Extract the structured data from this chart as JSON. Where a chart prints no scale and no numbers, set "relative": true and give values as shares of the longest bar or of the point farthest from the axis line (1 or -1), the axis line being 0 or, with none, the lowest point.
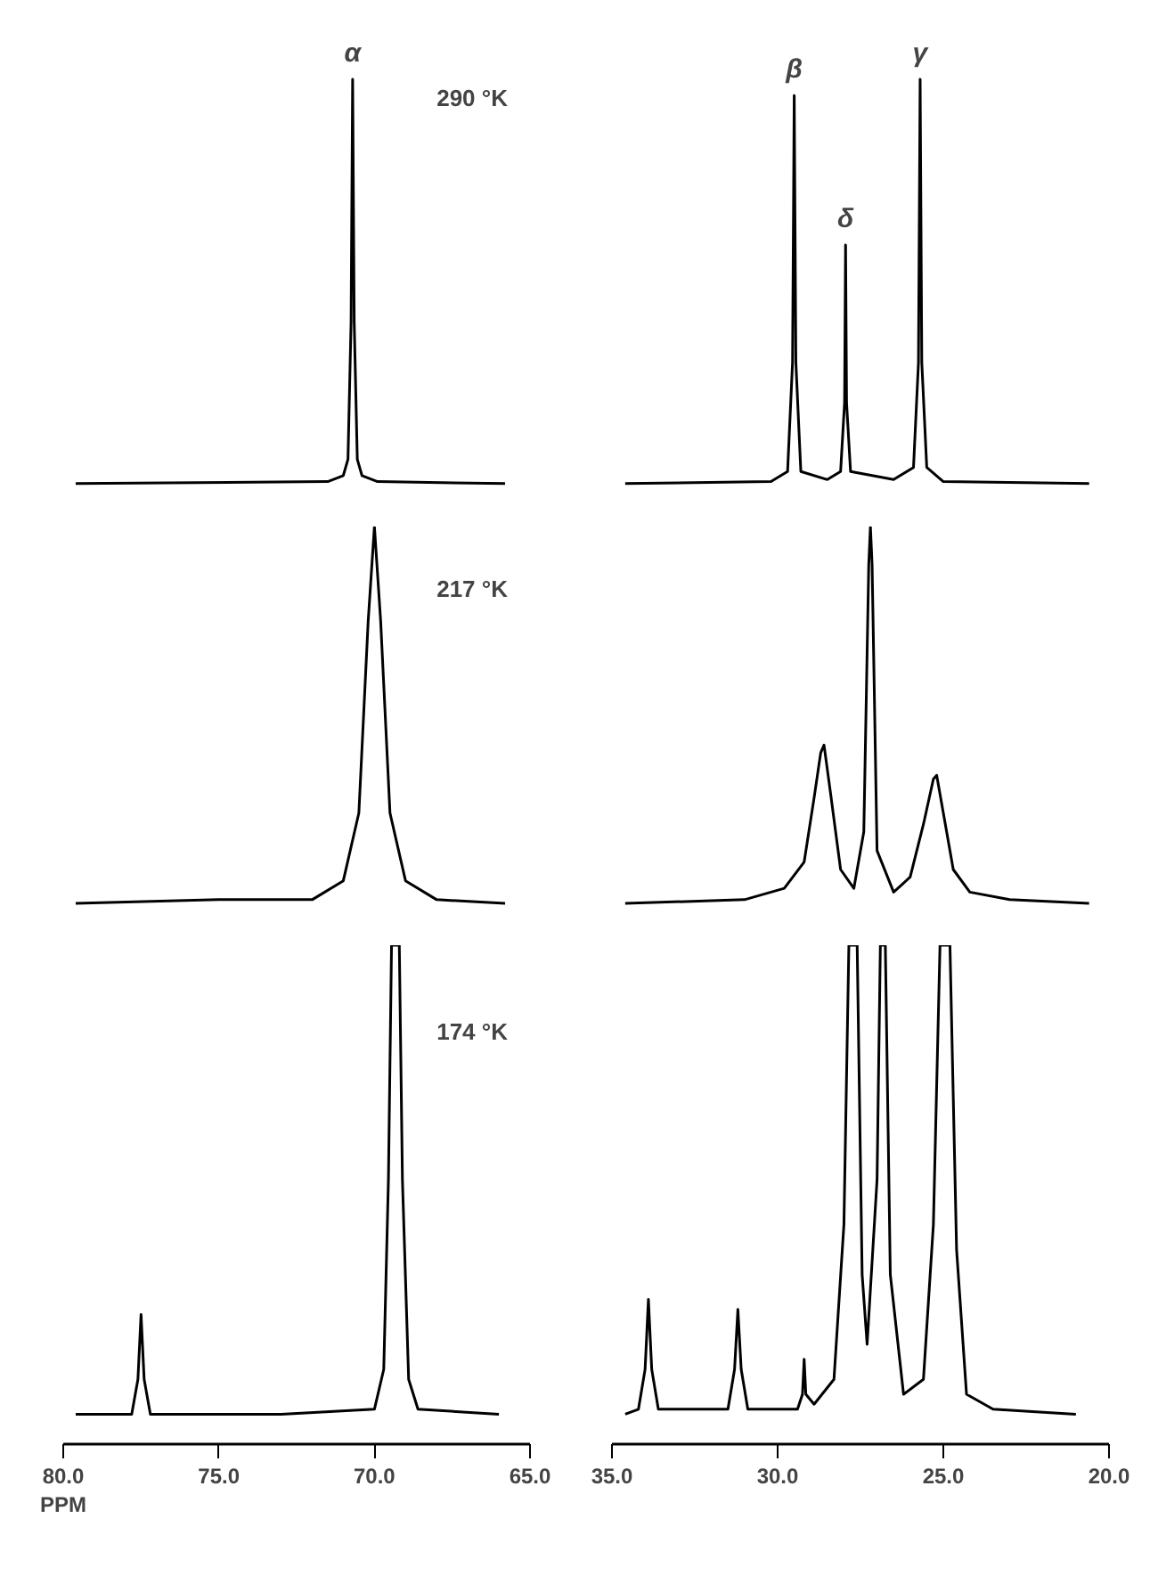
{
  "chart_data": [
    {
      "type": "line",
      "relative": true,
      "xlim": [
        80,
        65
      ],
      "tick_labels": false,
      "grid": false,
      "annotations": [
        {
          "text": "α",
          "x": 70.7,
          "y": 1
        },
        "290 °K"
      ],
      "series": [
        {
          "color": "#000000",
          "x": [
            79.6,
            71.5,
            71.0,
            70.85,
            70.75,
            70.7,
            70.65,
            70.55,
            70.4,
            69.9,
            65.8
          ],
          "values": [
            0,
            0.005,
            0.02,
            0.06,
            0.4,
            1,
            0.4,
            0.06,
            0.02,
            0.005,
            0
          ]
        }
      ]
    },
    {
      "type": "line",
      "relative": true,
      "xlim": [
        35,
        20
      ],
      "tick_labels": false,
      "grid": false,
      "annotations": [
        {
          "text": "β",
          "x": 29.5,
          "y": 0.96
        },
        {
          "text": "δ",
          "x": 27.95,
          "y": 0.59
        },
        {
          "text": "γ",
          "x": 25.7,
          "y": 1
        }
      ],
      "series": [
        {
          "color": "#000000",
          "x": [
            34.6,
            30.2,
            29.7,
            29.55,
            29.5,
            29.45,
            29.3,
            28.5,
            28.1,
            27.98,
            27.95,
            27.92,
            27.8,
            26.5,
            25.9,
            25.75,
            25.7,
            25.65,
            25.5,
            25.0,
            20.6
          ],
          "values": [
            0,
            0.005,
            0.03,
            0.3,
            0.96,
            0.3,
            0.03,
            0.01,
            0.03,
            0.2,
            0.59,
            0.2,
            0.03,
            0.01,
            0.04,
            0.3,
            1,
            0.3,
            0.04,
            0.005,
            0
          ]
        }
      ]
    },
    {
      "type": "line",
      "relative": true,
      "xlim": [
        80,
        65
      ],
      "tick_labels": false,
      "grid": false,
      "annotations": [
        "217 °K"
      ],
      "series": [
        {
          "color": "#000000",
          "x": [
            79.6,
            75,
            72,
            71,
            70.5,
            70.2,
            70.0,
            69.8,
            69.5,
            69.0,
            68,
            65.8
          ],
          "values": [
            0,
            0.01,
            0.01,
            0.06,
            0.24,
            0.75,
            1,
            0.75,
            0.24,
            0.06,
            0.01,
            0
          ]
        }
      ]
    },
    {
      "type": "line",
      "relative": true,
      "xlim": [
        35,
        20
      ],
      "tick_labels": false,
      "grid": false,
      "series": [
        {
          "color": "#000000",
          "x": [
            34.6,
            31,
            29.8,
            29.2,
            28.9,
            28.7,
            28.6,
            28.4,
            28.1,
            27.7,
            27.4,
            27.25,
            27.2,
            27.15,
            27.0,
            26.5,
            26.0,
            25.6,
            25.3,
            25.2,
            25.0,
            24.7,
            24.2,
            23,
            20.6
          ],
          "values": [
            0,
            0.01,
            0.04,
            0.11,
            0.28,
            0.4,
            0.42,
            0.29,
            0.09,
            0.04,
            0.19,
            0.9,
            1,
            0.9,
            0.14,
            0.03,
            0.07,
            0.21,
            0.33,
            0.34,
            0.24,
            0.09,
            0.03,
            0.01,
            0
          ]
        }
      ]
    },
    {
      "type": "line",
      "relative": true,
      "xlim": [
        80,
        65
      ],
      "xticks": [
        {
          "value": 80,
          "label": "80.0"
        },
        {
          "value": 75,
          "label": "75.0"
        },
        {
          "value": 70,
          "label": "70.0"
        },
        {
          "value": 65,
          "label": "65.0"
        }
      ],
      "xlabel": "PPM",
      "tick_labels": "x",
      "grid": false,
      "annotations": [
        "174 °K"
      ],
      "series": [
        {
          "color": "#000000",
          "x": [
            79.6,
            77.8,
            77.6,
            77.5,
            77.4,
            77.2,
            73,
            70.0,
            69.7,
            69.55,
            69.45,
            69.2,
            69.1,
            68.9,
            68.6,
            66
          ],
          "values": [
            0.06,
            0.06,
            0.13,
            0.26,
            0.13,
            0.06,
            0.06,
            0.07,
            0.15,
            0.53,
            1,
            1,
            0.53,
            0.13,
            0.07,
            0.06
          ]
        }
      ]
    },
    {
      "type": "line",
      "relative": true,
      "xlim": [
        35,
        20
      ],
      "xticks": [
        {
          "value": 35,
          "label": "35.0"
        },
        {
          "value": 30,
          "label": "30.0"
        },
        {
          "value": 25,
          "label": "25.0"
        },
        {
          "value": 20,
          "label": "20.0"
        }
      ],
      "tick_labels": "x",
      "grid": false,
      "series": [
        {
          "color": "#000000",
          "x": [
            34.6,
            34.2,
            34.0,
            33.9,
            33.8,
            33.6,
            31.5,
            31.3,
            31.2,
            31.1,
            30.9,
            29.4,
            29.25,
            29.2,
            29.15,
            28.9,
            28.3,
            28.0,
            27.85,
            27.6,
            27.45,
            27.3,
            27.0,
            26.9,
            26.75,
            26.6,
            26.2,
            25.6,
            25.3,
            25.1,
            24.8,
            24.6,
            24.3,
            23.5,
            21
          ],
          "values": [
            0.06,
            0.07,
            0.15,
            0.29,
            0.15,
            0.07,
            0.07,
            0.15,
            0.27,
            0.15,
            0.07,
            0.07,
            0.1,
            0.17,
            0.1,
            0.08,
            0.13,
            0.44,
            1,
            1,
            0.34,
            0.2,
            0.53,
            1,
            1,
            0.34,
            0.1,
            0.13,
            0.44,
            1,
            1,
            0.39,
            0.1,
            0.07,
            0.06
          ]
        }
      ]
    }
  ]
}
